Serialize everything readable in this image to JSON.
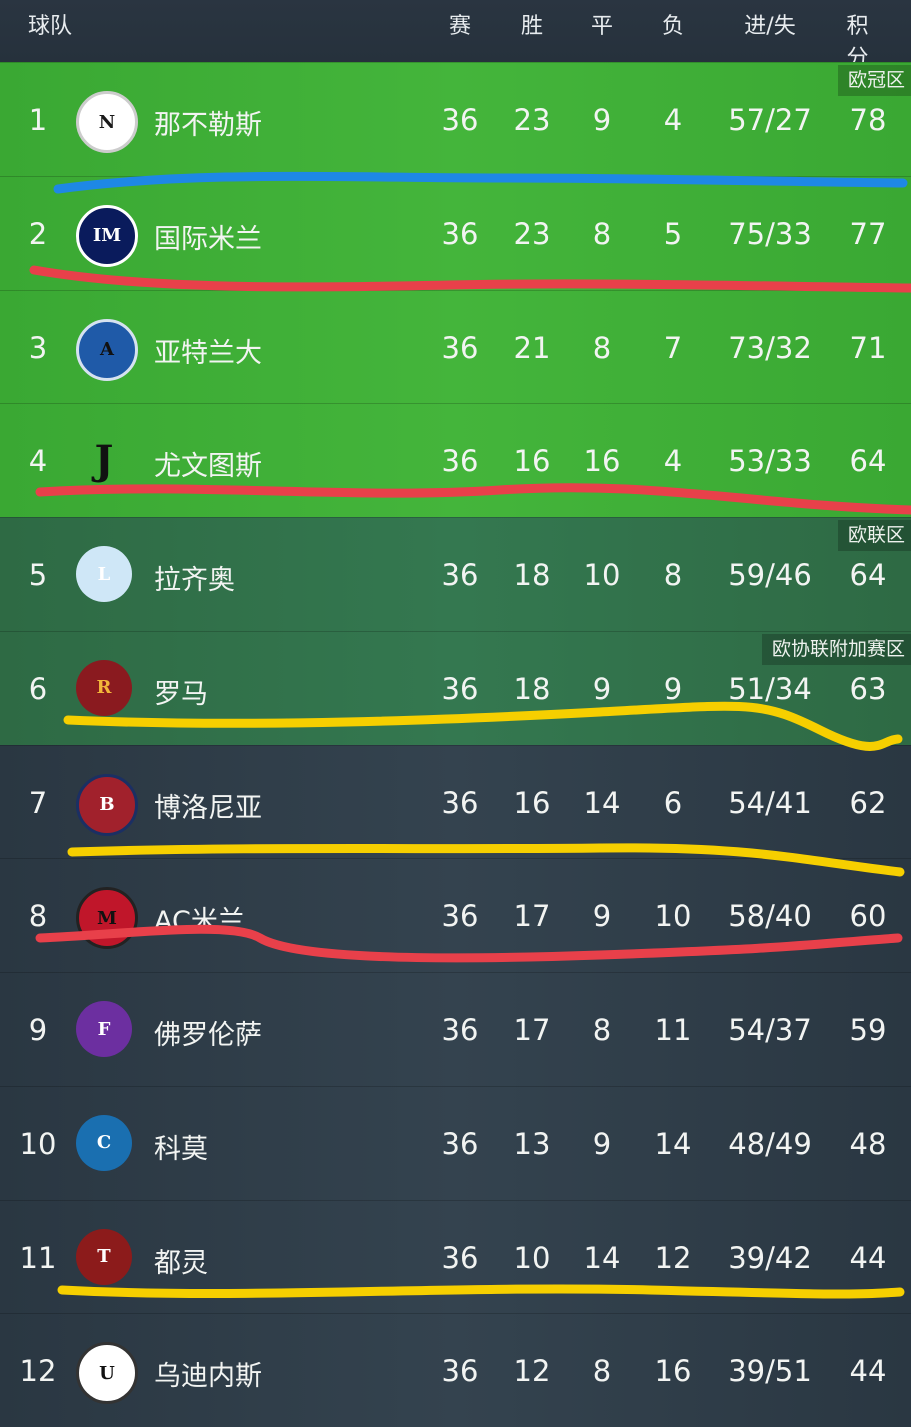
{
  "header": {
    "team": "球队",
    "played": "赛",
    "won": "胜",
    "drawn": "平",
    "lost": "负",
    "goals": "进/失",
    "points": "积分"
  },
  "zones": {
    "ucl": "欧冠区",
    "uel": "欧联区",
    "uecl": "欧协联附加赛区"
  },
  "colors": {
    "ucl_row": "#3fae37",
    "uel_row": "#317150",
    "other_row": "#2f3d48",
    "blue_line": "#1e88e5",
    "red_line": "#e8404a",
    "yellow_line": "#f6cf00"
  },
  "rows": [
    {
      "rank": "1",
      "logo": "N",
      "name": "那不勒斯",
      "played": "36",
      "won": "23",
      "drawn": "9",
      "lost": "4",
      "goals": "57/27",
      "points": "78"
    },
    {
      "rank": "2",
      "logo": "IM",
      "name": "国际米兰",
      "played": "36",
      "won": "23",
      "drawn": "8",
      "lost": "5",
      "goals": "75/33",
      "points": "77"
    },
    {
      "rank": "3",
      "logo": "A",
      "name": "亚特兰大",
      "played": "36",
      "won": "21",
      "drawn": "8",
      "lost": "7",
      "goals": "73/32",
      "points": "71"
    },
    {
      "rank": "4",
      "logo": "J",
      "name": "尤文图斯",
      "played": "36",
      "won": "16",
      "drawn": "16",
      "lost": "4",
      "goals": "53/33",
      "points": "64"
    },
    {
      "rank": "5",
      "logo": "L",
      "name": "拉齐奥",
      "played": "36",
      "won": "18",
      "drawn": "10",
      "lost": "8",
      "goals": "59/46",
      "points": "64"
    },
    {
      "rank": "6",
      "logo": "R",
      "name": "罗马",
      "played": "36",
      "won": "18",
      "drawn": "9",
      "lost": "9",
      "goals": "51/34",
      "points": "63"
    },
    {
      "rank": "7",
      "logo": "B",
      "name": "博洛尼亚",
      "played": "36",
      "won": "16",
      "drawn": "14",
      "lost": "6",
      "goals": "54/41",
      "points": "62"
    },
    {
      "rank": "8",
      "logo": "M",
      "name": "AC米兰",
      "played": "36",
      "won": "17",
      "drawn": "9",
      "lost": "10",
      "goals": "58/40",
      "points": "60"
    },
    {
      "rank": "9",
      "logo": "F",
      "name": "佛罗伦萨",
      "played": "36",
      "won": "17",
      "drawn": "8",
      "lost": "11",
      "goals": "54/37",
      "points": "59"
    },
    {
      "rank": "10",
      "logo": "C",
      "name": "科莫",
      "played": "36",
      "won": "13",
      "drawn": "9",
      "lost": "14",
      "goals": "48/49",
      "points": "48"
    },
    {
      "rank": "11",
      "logo": "T",
      "name": "都灵",
      "played": "36",
      "won": "10",
      "drawn": "14",
      "lost": "12",
      "goals": "39/42",
      "points": "44"
    },
    {
      "rank": "12",
      "logo": "U",
      "name": "乌迪内斯",
      "played": "36",
      "won": "12",
      "drawn": "8",
      "lost": "16",
      "goals": "39/51",
      "points": "44"
    }
  ]
}
